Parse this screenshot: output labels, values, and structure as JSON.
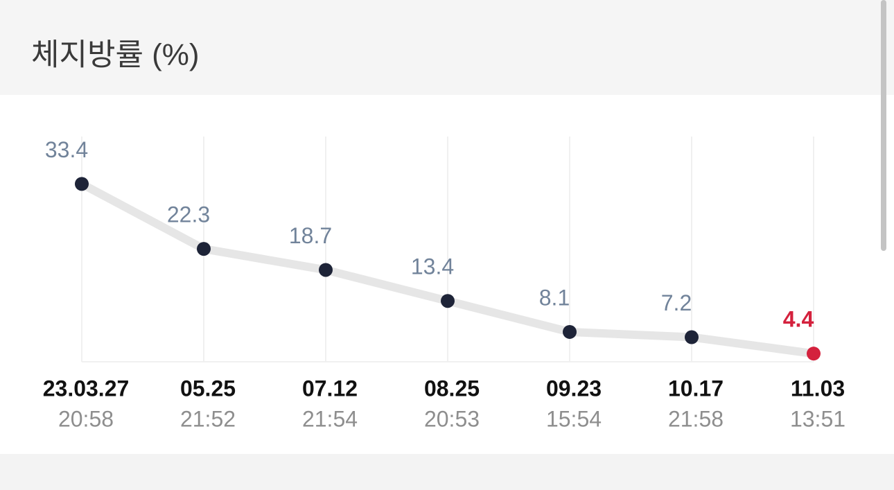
{
  "chart_data": {
    "type": "line",
    "title": "체지방률 (%)",
    "categories": [
      "23.03.27",
      "05.25",
      "07.12",
      "08.25",
      "09.23",
      "10.17",
      "11.03"
    ],
    "times": [
      "20:58",
      "21:52",
      "21:54",
      "20:53",
      "15:54",
      "21:58",
      "13:51"
    ],
    "values": [
      33.4,
      22.3,
      18.7,
      13.4,
      8.1,
      7.2,
      4.4
    ],
    "point_colors": [
      "#1e2438",
      "#1e2438",
      "#1e2438",
      "#1e2438",
      "#1e2438",
      "#1e2438",
      "#d4213d"
    ],
    "label_colors": [
      "#71839a",
      "#71839a",
      "#71839a",
      "#71839a",
      "#71839a",
      "#71839a",
      "#d4213d"
    ],
    "line_color": "#e6e6e6",
    "ylim": [
      3,
      41.5
    ]
  }
}
